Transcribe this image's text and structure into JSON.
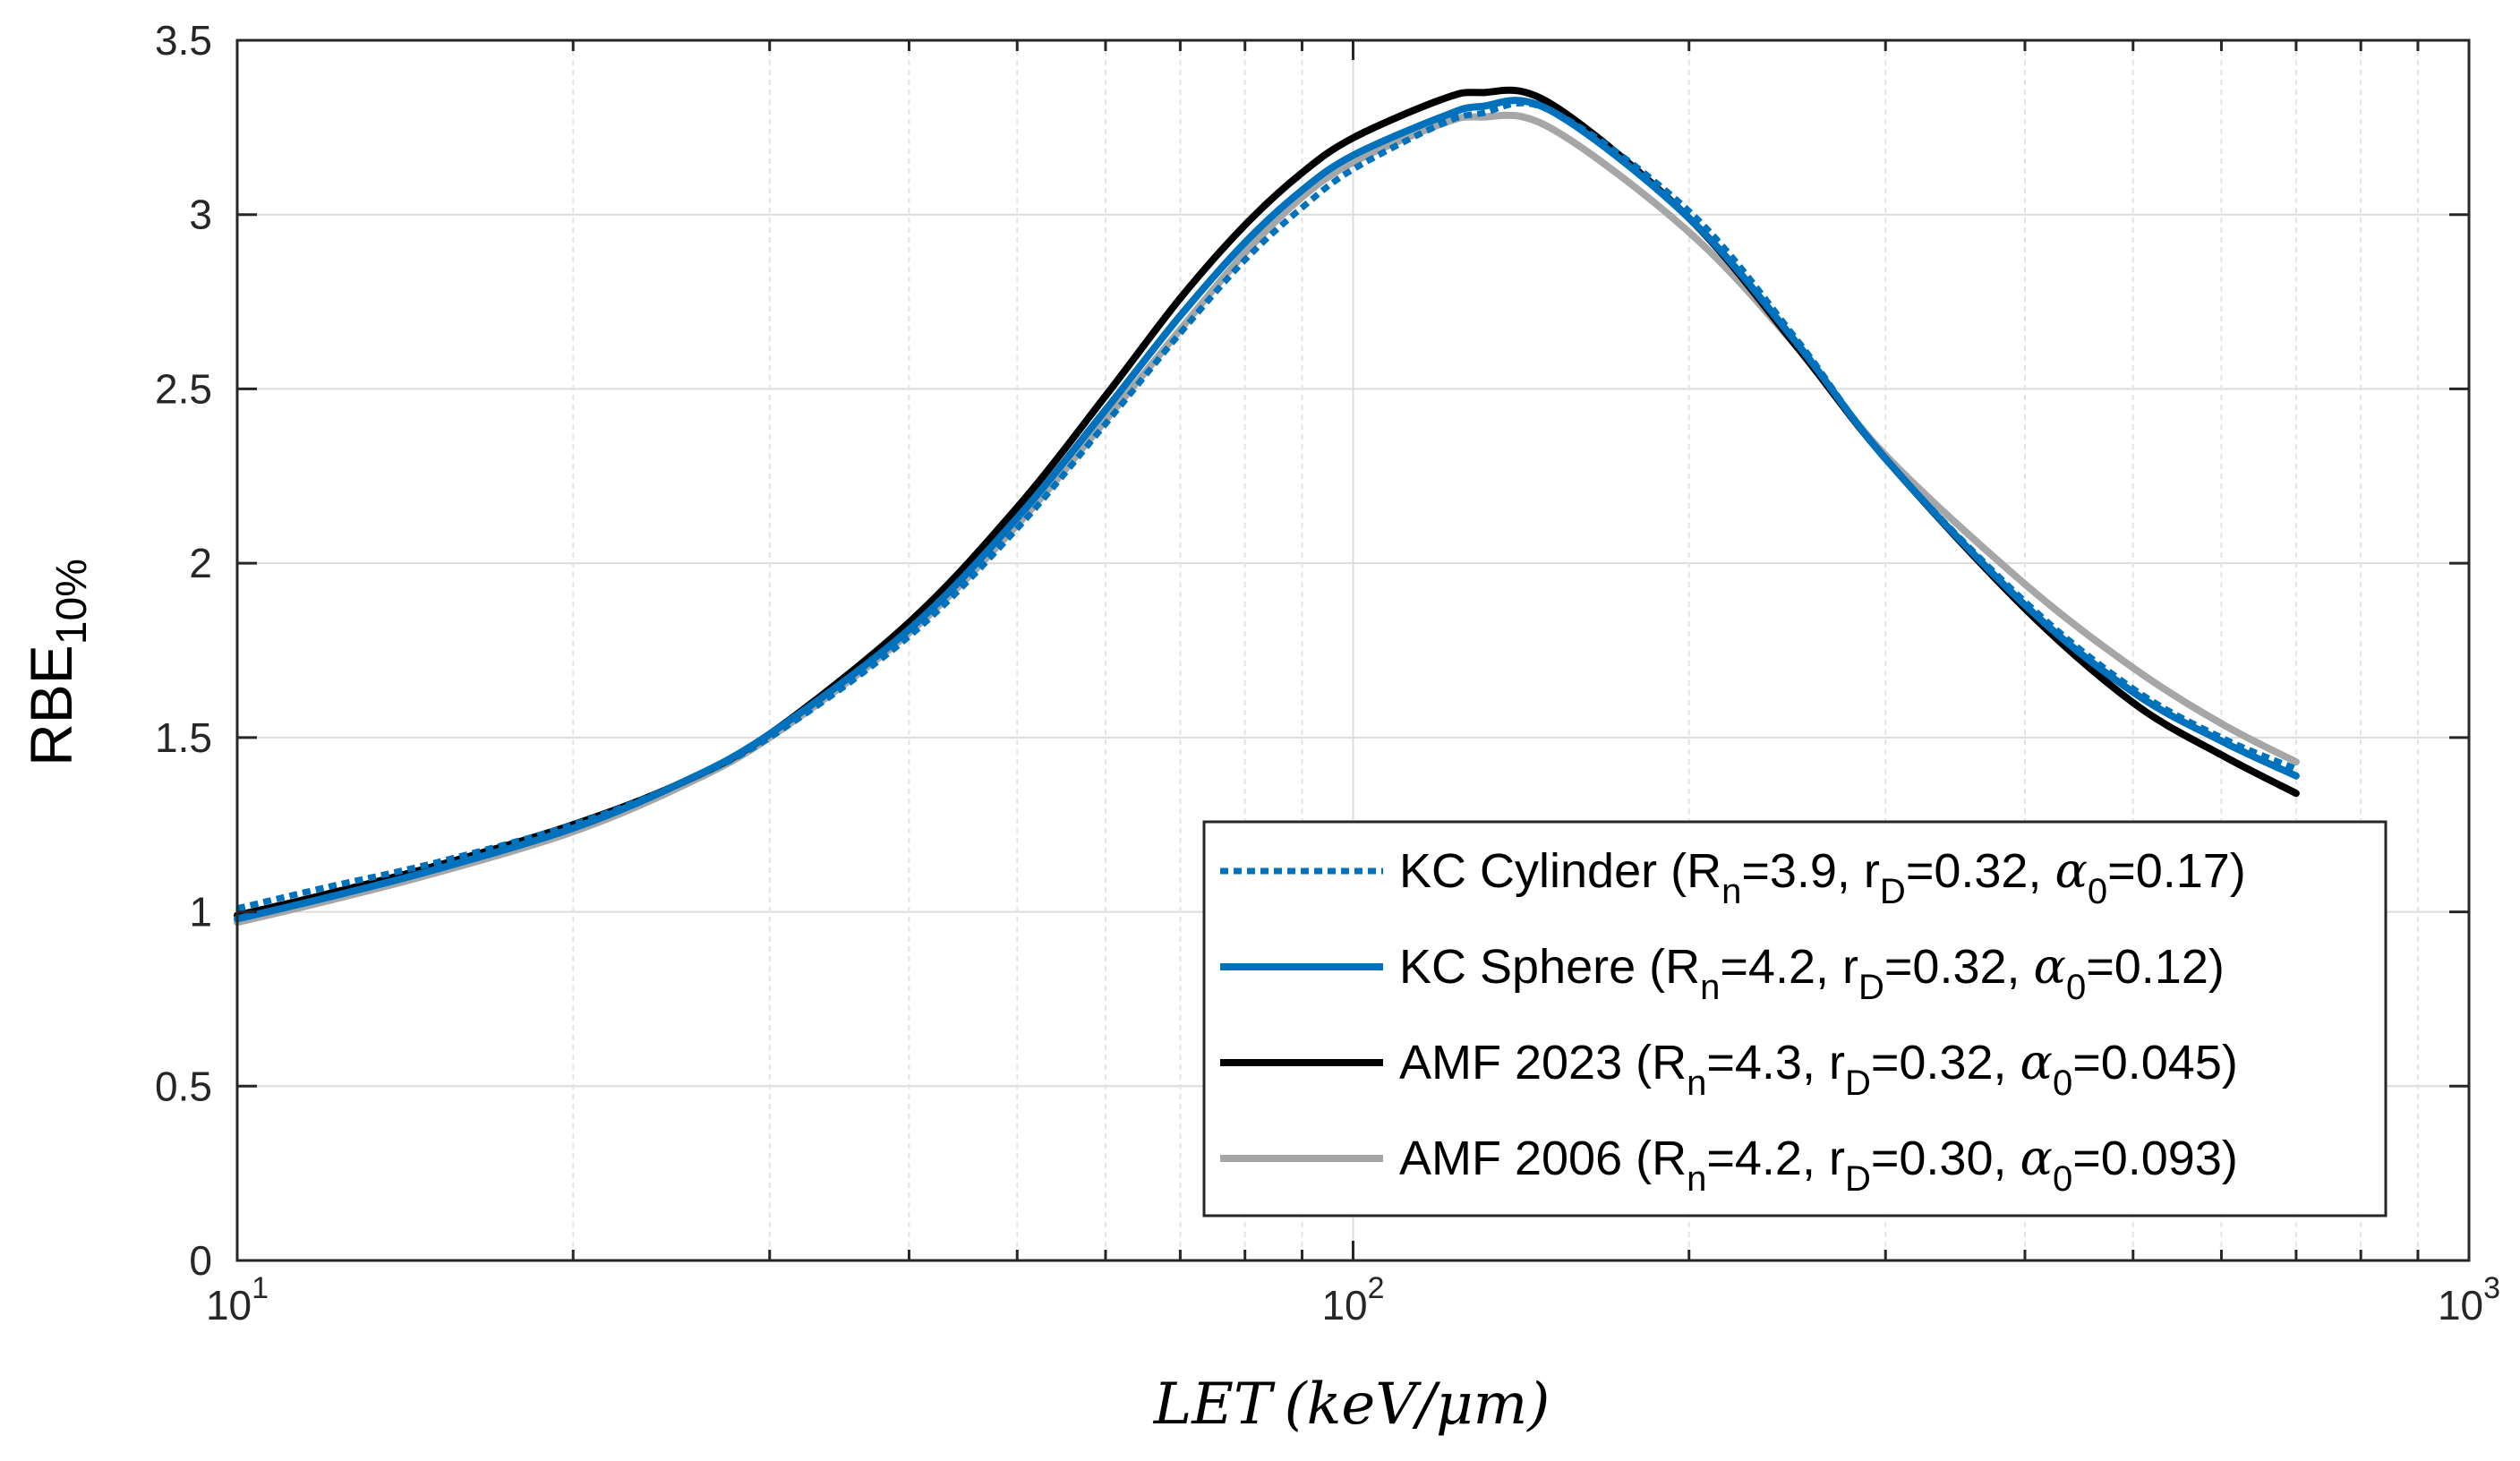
{
  "chart_data": {
    "type": "line",
    "title": "",
    "xlabel": "LET (keV/μm)",
    "xlabel_parts": {
      "italic": "LET",
      "unit": "(keV/μm)"
    },
    "ylabel": "RBE10%",
    "ylabel_parts": {
      "main": "RBE",
      "sub": "10%"
    },
    "xscale": "log",
    "xlim": [
      10,
      1000
    ],
    "ylim": [
      0,
      3.5
    ],
    "grid": true,
    "legend_location": "bottom-right",
    "x_ticks": [
      {
        "value": 10,
        "base": "10",
        "exp": "1"
      },
      {
        "value": 100,
        "base": "10",
        "exp": "2"
      },
      {
        "value": 1000,
        "base": "10",
        "exp": "3"
      }
    ],
    "y_ticks": [
      {
        "value": 0,
        "label": "0"
      },
      {
        "value": 0.5,
        "label": "0.5"
      },
      {
        "value": 1,
        "label": "1"
      },
      {
        "value": 1.5,
        "label": "1.5"
      },
      {
        "value": 2,
        "label": "2"
      },
      {
        "value": 2.5,
        "label": "2.5"
      },
      {
        "value": 3,
        "label": "3"
      },
      {
        "value": 3.5,
        "label": "3.5"
      }
    ],
    "series": [
      {
        "name": "KC Cylinder (Rn=3.9, rD=0.32, α0=0.17)",
        "legend": {
          "pre": "KC Cylinder (R",
          "rn_sub": "n",
          "rn_val": "=3.9, r",
          "rd_sub": "D",
          "rd_val": "=0.32, ",
          "alpha": "α",
          "a_sub": "0",
          "a_val": "=0.17)"
        },
        "color": "#0072BD",
        "style": "dotted",
        "x": [
          10,
          12,
          15,
          20,
          25,
          30,
          40,
          50,
          60,
          70,
          80,
          90,
          100,
          120,
          130,
          150,
          200,
          250,
          300,
          400,
          500,
          600,
          700
        ],
        "y": [
          1.01,
          1.07,
          1.14,
          1.25,
          1.37,
          1.5,
          1.79,
          2.1,
          2.4,
          2.66,
          2.87,
          3.02,
          3.13,
          3.26,
          3.29,
          3.3,
          3.01,
          2.64,
          2.3,
          1.89,
          1.64,
          1.5,
          1.41
        ]
      },
      {
        "name": "KC Sphere (Rn=4.2, rD=0.32, α0=0.12)",
        "legend": {
          "pre": "KC Sphere (R",
          "rn_sub": "n",
          "rn_val": "=4.2, r",
          "rd_sub": "D",
          "rd_val": "=0.32, ",
          "alpha": "α",
          "a_sub": "0",
          "a_val": "=0.12)"
        },
        "color": "#0072BD",
        "style": "solid",
        "x": [
          10,
          12,
          15,
          20,
          25,
          30,
          40,
          50,
          60,
          70,
          80,
          90,
          100,
          120,
          130,
          150,
          200,
          250,
          300,
          400,
          500,
          600,
          700
        ],
        "y": [
          0.98,
          1.04,
          1.12,
          1.24,
          1.37,
          1.51,
          1.81,
          2.13,
          2.44,
          2.71,
          2.92,
          3.07,
          3.17,
          3.28,
          3.31,
          3.3,
          2.99,
          2.63,
          2.3,
          1.88,
          1.63,
          1.49,
          1.39
        ]
      },
      {
        "name": "AMF 2023 (Rn=4.3, rD=0.32, α0=0.045)",
        "legend": {
          "pre": "AMF 2023 (R",
          "rn_sub": "n",
          "rn_val": "=4.3, r",
          "rd_sub": "D",
          "rd_val": "=0.32, ",
          "alpha": "α",
          "a_sub": "0",
          "a_val": "=0.045)"
        },
        "color": "#000000",
        "style": "solid",
        "x": [
          10,
          12,
          15,
          20,
          25,
          30,
          40,
          50,
          60,
          70,
          80,
          90,
          100,
          120,
          130,
          150,
          200,
          250,
          300,
          400,
          500,
          600,
          700
        ],
        "y": [
          0.99,
          1.05,
          1.13,
          1.25,
          1.37,
          1.51,
          1.83,
          2.16,
          2.48,
          2.76,
          2.97,
          3.12,
          3.22,
          3.33,
          3.35,
          3.32,
          2.99,
          2.62,
          2.3,
          1.87,
          1.6,
          1.45,
          1.34
        ]
      },
      {
        "name": "AMF 2006 (Rn=4.2, rD=0.30, α0=0.093)",
        "legend": {
          "pre": "AMF 2006 (R",
          "rn_sub": "n",
          "rn_val": "=4.2, r",
          "rd_sub": "D",
          "rd_val": "=0.30, ",
          "alpha": "α",
          "a_sub": "0",
          "a_val": "=0.093)"
        },
        "color": "#A6A6A6",
        "style": "solid",
        "x": [
          10,
          12,
          15,
          20,
          25,
          30,
          40,
          50,
          60,
          70,
          80,
          90,
          100,
          120,
          130,
          150,
          200,
          250,
          300,
          400,
          500,
          600,
          700
        ],
        "y": [
          0.97,
          1.03,
          1.11,
          1.23,
          1.36,
          1.5,
          1.8,
          2.11,
          2.41,
          2.67,
          2.89,
          3.05,
          3.15,
          3.26,
          3.28,
          3.25,
          2.95,
          2.62,
          2.31,
          1.94,
          1.7,
          1.54,
          1.43
        ]
      }
    ]
  }
}
